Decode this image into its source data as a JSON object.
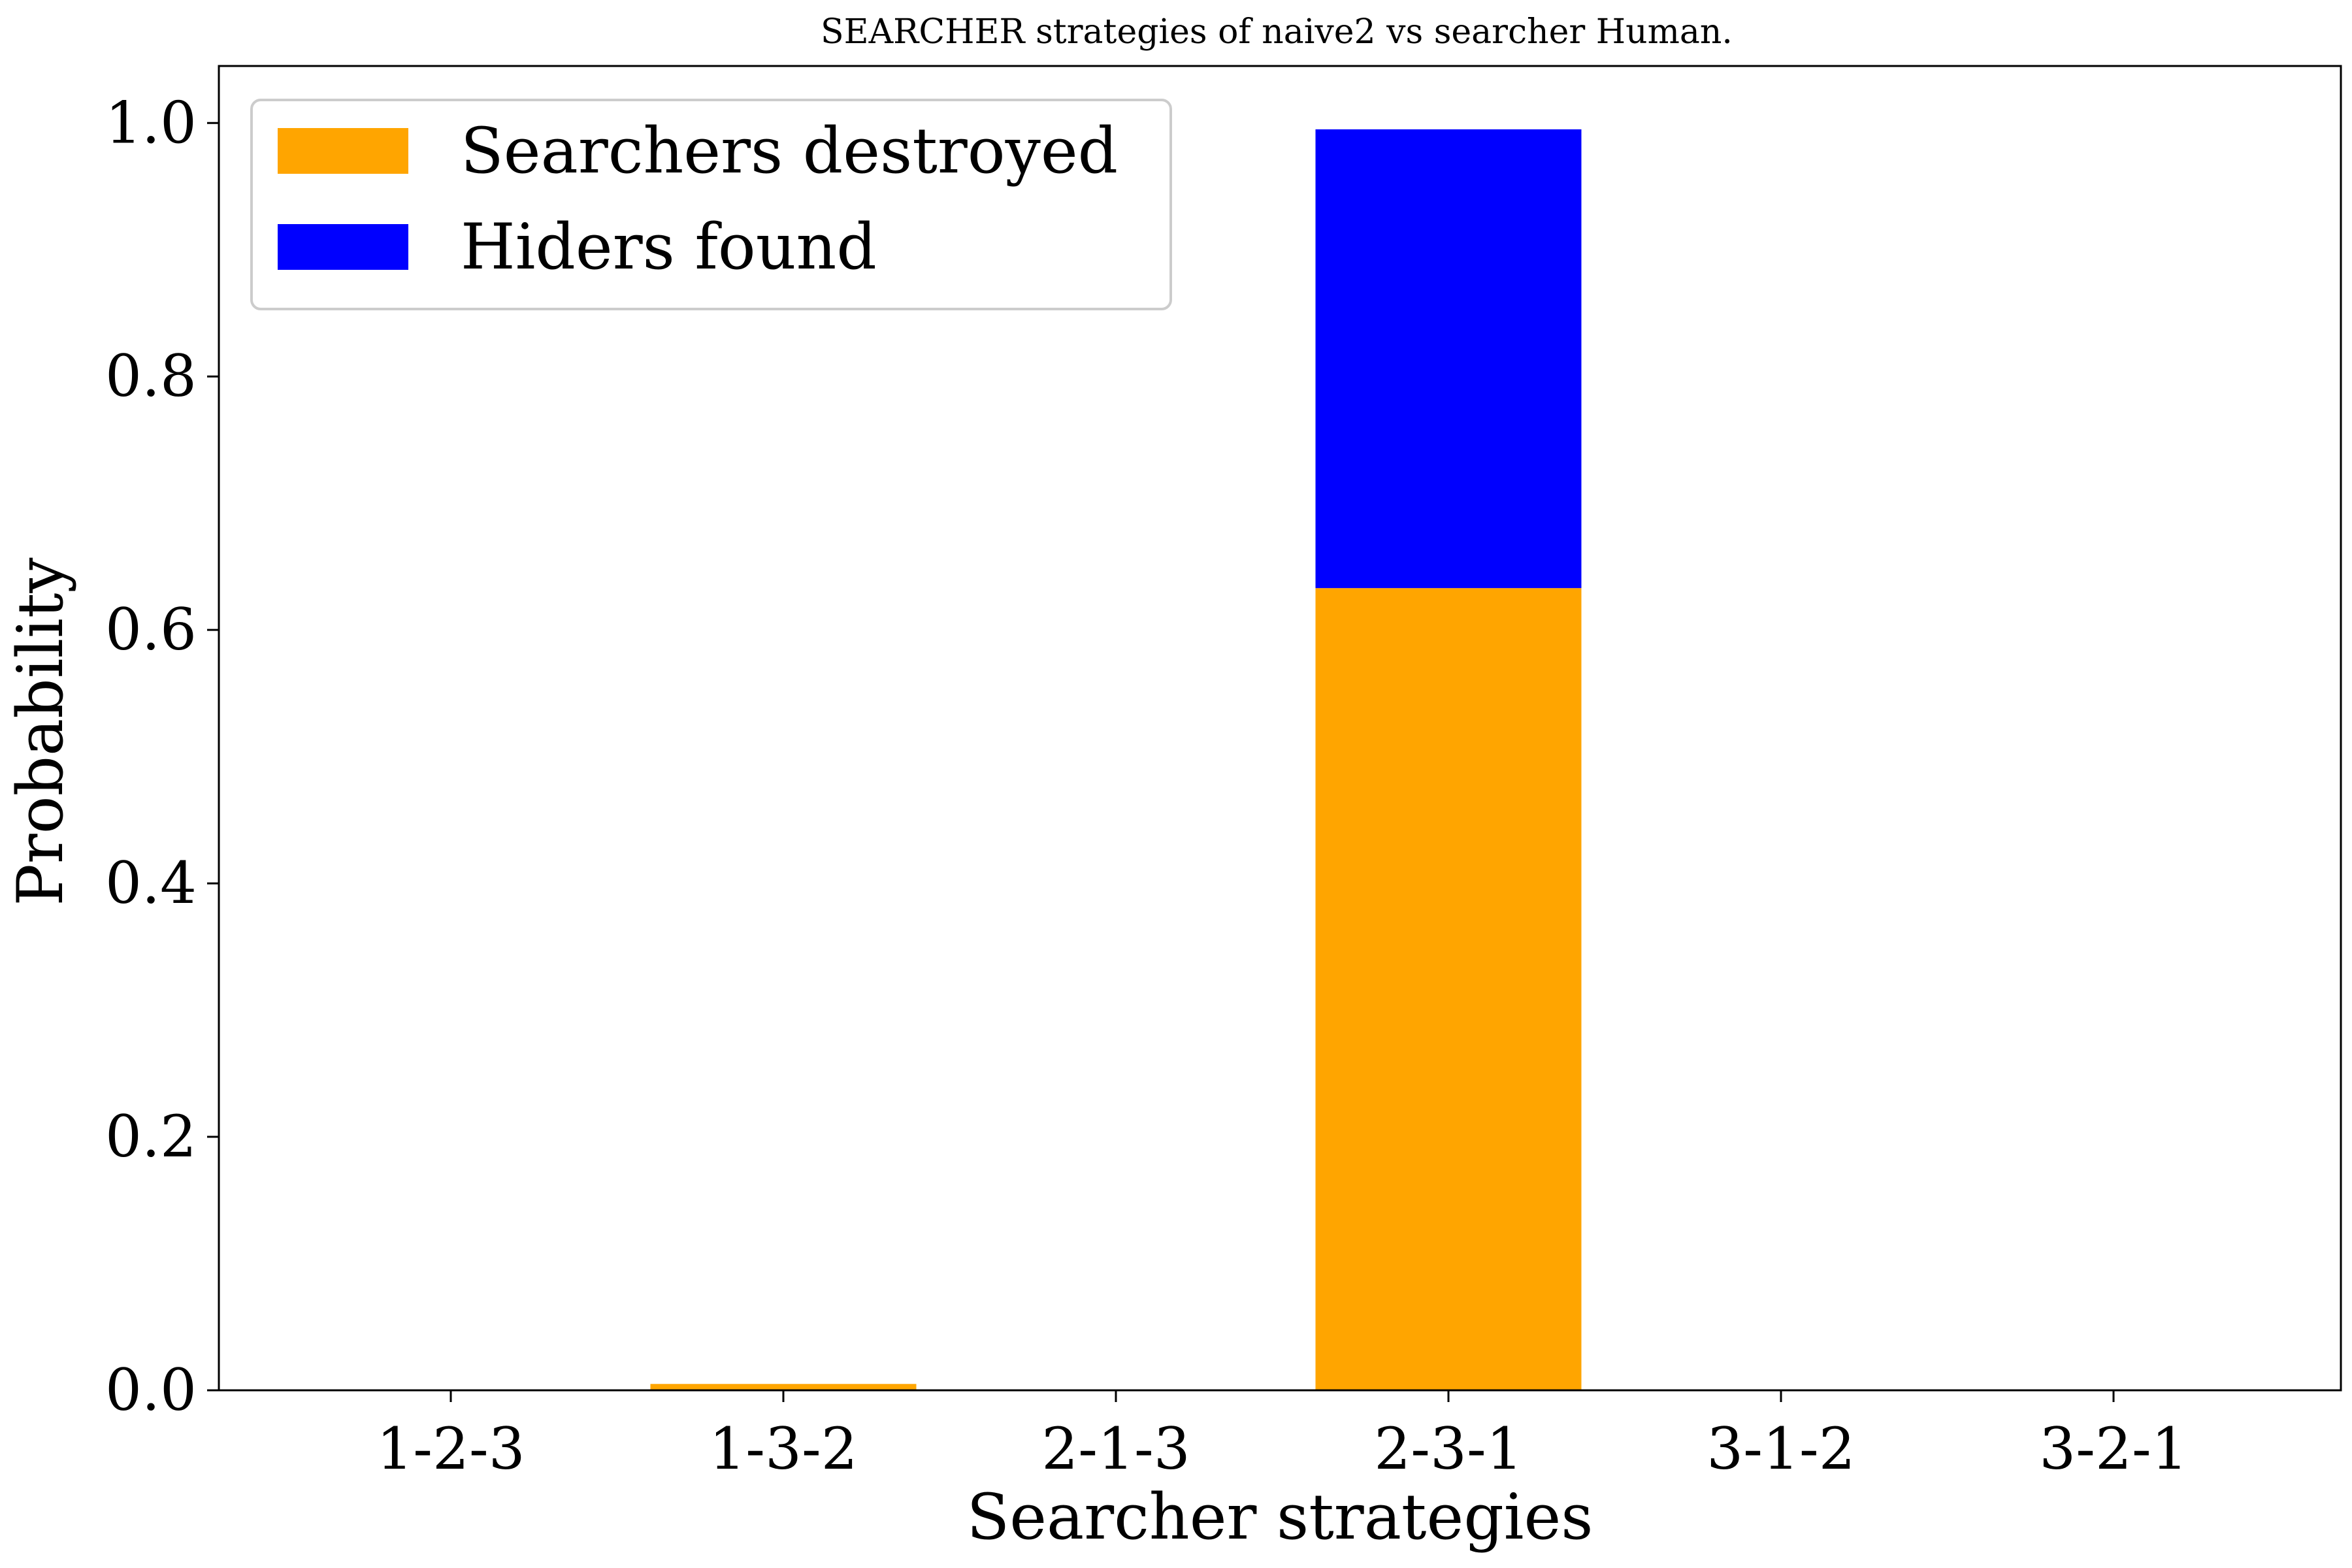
{
  "chart_data": {
    "type": "bar",
    "stacked": true,
    "title": "SEARCHER strategies of naive2 vs searcher Human.",
    "xlabel": "Searcher strategies",
    "ylabel": "Probability",
    "categories": [
      "1-2-3",
      "1-3-2",
      "2-1-3",
      "2-3-1",
      "3-1-2",
      "3-2-1"
    ],
    "series": [
      {
        "name": "Searchers destroyed",
        "color": "#ffa500",
        "values": [
          0.0,
          0.005,
          0.0,
          0.633,
          0.0,
          0.0
        ]
      },
      {
        "name": "Hiders found",
        "color": "#0000ff",
        "values": [
          0.0,
          0.0,
          0.0,
          0.362,
          0.0,
          0.0
        ]
      }
    ],
    "ylim": [
      0,
      1.045
    ],
    "yticks": [
      0.0,
      0.2,
      0.4,
      0.6,
      0.8,
      1.0
    ],
    "ytick_labels": [
      "0.0",
      "0.2",
      "0.4",
      "0.6",
      "0.8",
      "1.0"
    ],
    "grid": false,
    "legend_position": "top-left"
  }
}
